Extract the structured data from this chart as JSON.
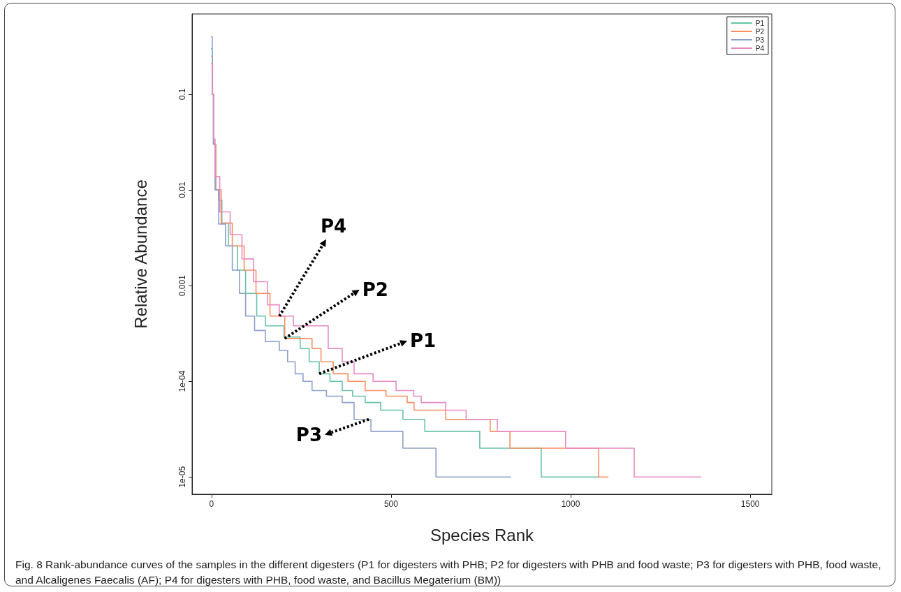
{
  "chart_data": {
    "type": "step",
    "xlabel": "Species Rank",
    "ylabel": "Relative Abundance",
    "log": "y",
    "xlim": [
      -54,
      1560
    ],
    "xticks": [
      0,
      500,
      1000,
      1500
    ],
    "ylim": [
      6.6e-06,
      0.69
    ],
    "yticks": [
      {
        "value": 0.1,
        "label": "0.1"
      },
      {
        "value": 0.01,
        "label": "0.01"
      },
      {
        "value": 0.001,
        "label": "0.001"
      },
      {
        "value": 0.0001,
        "label": "1e-04"
      },
      {
        "value": 1e-05,
        "label": "1e-05"
      }
    ],
    "grid": false,
    "legend": "top right",
    "marker": "none",
    "line_style": "solid",
    "series": [
      {
        "name": "P1",
        "color": "#66c2a5",
        "x": [
          0,
          2,
          6,
          12,
          20,
          29,
          47,
          72,
          95,
          126,
          150,
          202,
          247,
          272,
          300,
          330,
          364,
          393,
          428,
          471,
          533,
          594,
          747,
          918,
          1078
        ],
        "values": [
          0.3,
          0.1,
          0.03,
          0.01,
          0.0078,
          0.0045,
          0.0026,
          0.00145,
          0.00083,
          0.00048,
          0.00038,
          0.00029,
          0.00022,
          0.00016,
          0.00012,
          0.0001,
          8e-05,
          7e-05,
          6e-05,
          5e-05,
          4e-05,
          3e-05,
          2e-05,
          1e-05,
          1e-05
        ]
      },
      {
        "name": "P2",
        "color": "#fc8d62",
        "x": [
          0,
          2,
          6,
          12,
          27,
          58,
          91,
          124,
          163,
          204,
          280,
          305,
          339,
          380,
          428,
          486,
          545,
          564,
          652,
          776,
          831,
          1078,
          1104
        ],
        "values": [
          0.25,
          0.1,
          0.03,
          0.01,
          0.0045,
          0.0026,
          0.00145,
          0.00083,
          0.00048,
          0.00028,
          0.00022,
          0.00016,
          0.00012,
          0.0001,
          8e-05,
          7e-05,
          6e-05,
          5e-05,
          4e-05,
          3e-05,
          2e-05,
          1e-05,
          1e-05
        ]
      },
      {
        "name": "P3",
        "color": "#8da0cb",
        "x": [
          0,
          2,
          5,
          10,
          20,
          39,
          58,
          78,
          95,
          120,
          150,
          189,
          212,
          233,
          255,
          280,
          320,
          364,
          397,
          444,
          533,
          625,
          833
        ],
        "values": [
          0.4,
          0.1,
          0.03,
          0.01,
          0.0044,
          0.0026,
          0.00145,
          0.00083,
          0.00048,
          0.00034,
          0.00026,
          0.00021,
          0.00016,
          0.00012,
          0.0001,
          8e-05,
          7e-05,
          6e-05,
          4e-05,
          3e-05,
          2e-05,
          1e-05,
          1e-05
        ]
      },
      {
        "name": "P4",
        "color": "#e78ac3",
        "x": [
          0,
          3,
          6,
          10,
          23,
          52,
          85,
          117,
          156,
          189,
          228,
          325,
          364,
          397,
          450,
          514,
          563,
          584,
          652,
          709,
          796,
          986,
          1177,
          1362
        ],
        "values": [
          0.21,
          0.1,
          0.034,
          0.0138,
          0.0059,
          0.0034,
          0.0019,
          0.0011,
          0.00063,
          0.00048,
          0.00038,
          0.00022,
          0.00016,
          0.00012,
          0.0001,
          8e-05,
          7e-05,
          6e-05,
          5e-05,
          4e-05,
          3e-05,
          2e-05,
          1e-05,
          1e-05
        ]
      }
    ],
    "annotations": [
      {
        "text": "P4",
        "x": 189,
        "y": 0.00048
      },
      {
        "text": "P2",
        "x": 204,
        "y": 0.00028
      },
      {
        "text": "P1",
        "x": 300,
        "y": 0.00012
      },
      {
        "text": "P3",
        "x": 438,
        "y": 4e-05
      },
      "Fig. 8 Rank-abundance curves of the samples in the different digesters (P1 for digesters with PHB; P2 for digesters with PHB and food waste; P3 for digesters with PHB, food waste, and Alcaligenes Faecalis (AF); P4 for digesters with PHB, food waste, and Bacillus Megaterium (BM))"
    ]
  }
}
